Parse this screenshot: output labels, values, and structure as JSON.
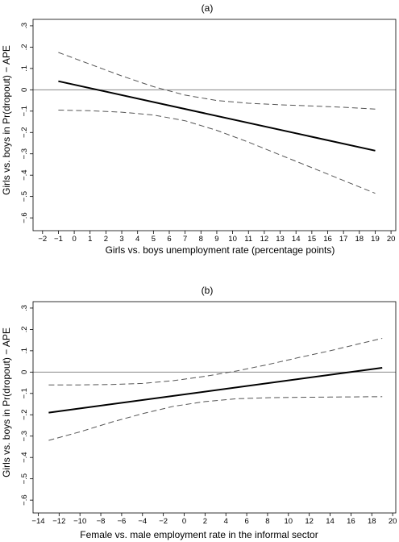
{
  "chart_data": [
    {
      "type": "line",
      "title": "(a)",
      "xlabel": "Girls vs. boys unemployment rate (percentage points)",
      "ylabel": "Girls vs. boys in Pr(dropout) − APE",
      "xlim": [
        -2.6,
        20.3
      ],
      "ylim": [
        -0.66,
        0.33
      ],
      "xticks": [
        -2,
        -1,
        0,
        1,
        2,
        3,
        4,
        5,
        6,
        7,
        8,
        9,
        10,
        11,
        12,
        13,
        14,
        15,
        16,
        17,
        18,
        19,
        20
      ],
      "xtick_labels": [
        "−2",
        "−1",
        "0",
        "1",
        "2",
        "3",
        "4",
        "5",
        "6",
        "7",
        "8",
        "9",
        "10",
        "11",
        "12",
        "13",
        "14",
        "15",
        "16",
        "17",
        "18",
        "19",
        "20"
      ],
      "yticks": [
        -0.6,
        -0.5,
        -0.4,
        -0.3,
        -0.2,
        -0.1,
        0,
        0.1,
        0.2,
        0.3
      ],
      "ytick_labels": [
        "−.6",
        "−.5",
        "−.4",
        "−.3",
        "−.2",
        "−.1",
        "0",
        ".1",
        ".2",
        ".3"
      ],
      "zero_line": true,
      "series": [
        {
          "role": "estimate",
          "x": [
            -1,
            19
          ],
          "y": [
            0.04,
            -0.285
          ]
        },
        {
          "role": "upper_ci",
          "x": [
            -1,
            1,
            3,
            5,
            7,
            9,
            11,
            13,
            15,
            17,
            19
          ],
          "y": [
            0.175,
            0.12,
            0.065,
            0.015,
            -0.025,
            -0.05,
            -0.063,
            -0.07,
            -0.076,
            -0.082,
            -0.09
          ]
        },
        {
          "role": "lower_ci",
          "x": [
            -1,
            1,
            3,
            5,
            7,
            9,
            11,
            13,
            15,
            17,
            19
          ],
          "y": [
            -0.095,
            -0.098,
            -0.105,
            -0.118,
            -0.145,
            -0.19,
            -0.245,
            -0.305,
            -0.365,
            -0.425,
            -0.485
          ]
        }
      ]
    },
    {
      "type": "line",
      "title": "(b)",
      "xlabel": "Female vs. male employment rate in the informal sector",
      "ylabel": "Girls vs. boys in Pr(dropout) − APE",
      "xlim": [
        -14.5,
        20.3
      ],
      "ylim": [
        -0.66,
        0.33
      ],
      "xticks": [
        -14,
        -12,
        -10,
        -8,
        -6,
        -4,
        -2,
        0,
        2,
        4,
        6,
        8,
        10,
        12,
        14,
        16,
        18,
        20
      ],
      "xtick_labels": [
        "−14",
        "−12",
        "−10",
        "−8",
        "−6",
        "−4",
        "−2",
        "0",
        "2",
        "4",
        "6",
        "8",
        "10",
        "12",
        "14",
        "16",
        "18",
        "20"
      ],
      "yticks": [
        -0.6,
        -0.5,
        -0.4,
        -0.3,
        -0.2,
        -0.1,
        0,
        0.1,
        0.2,
        0.3
      ],
      "ytick_labels": [
        "−.6",
        "−.5",
        "−.4",
        "−.3",
        "−.2",
        "−.1",
        "0",
        ".1",
        ".2",
        ".3"
      ],
      "zero_line": true,
      "series": [
        {
          "role": "estimate",
          "x": [
            -13,
            19
          ],
          "y": [
            -0.19,
            0.02
          ]
        },
        {
          "role": "upper_ci",
          "x": [
            -13,
            -10,
            -7,
            -4,
            -1,
            2,
            5,
            8,
            11,
            14,
            17,
            19
          ],
          "y": [
            -0.06,
            -0.06,
            -0.058,
            -0.053,
            -0.04,
            -0.02,
            0.005,
            0.035,
            0.068,
            0.1,
            0.135,
            0.158
          ]
        },
        {
          "role": "lower_ci",
          "x": [
            -13,
            -10,
            -7,
            -4,
            -1,
            2,
            5,
            8,
            11,
            14,
            17,
            19
          ],
          "y": [
            -0.32,
            -0.28,
            -0.235,
            -0.195,
            -0.16,
            -0.138,
            -0.125,
            -0.12,
            -0.118,
            -0.117,
            -0.116,
            -0.115
          ]
        }
      ]
    }
  ]
}
